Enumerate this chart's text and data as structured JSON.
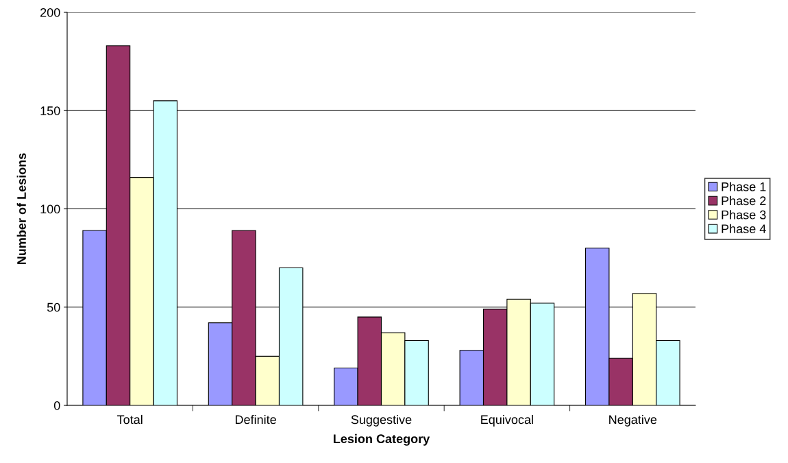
{
  "chart_data": {
    "type": "bar",
    "xlabel": "Lesion Category",
    "ylabel": "Number of Lesions",
    "categories": [
      "Total",
      "Definite",
      "Suggestive",
      "Equivocal",
      "Negative"
    ],
    "series": [
      {
        "name": "Phase 1",
        "color": "#9999ff",
        "values": [
          89,
          42,
          19,
          28,
          80
        ]
      },
      {
        "name": "Phase 2",
        "color": "#993366",
        "values": [
          183,
          89,
          45,
          49,
          24
        ]
      },
      {
        "name": "Phase 3",
        "color": "#ffffcc",
        "values": [
          116,
          25,
          37,
          54,
          57
        ]
      },
      {
        "name": "Phase 4",
        "color": "#ccffff",
        "values": [
          155,
          70,
          33,
          52,
          33
        ]
      }
    ],
    "ylim": [
      0,
      200
    ],
    "yticks": [
      0,
      50,
      100,
      150,
      200
    ],
    "grid": "y",
    "legend": "right"
  }
}
